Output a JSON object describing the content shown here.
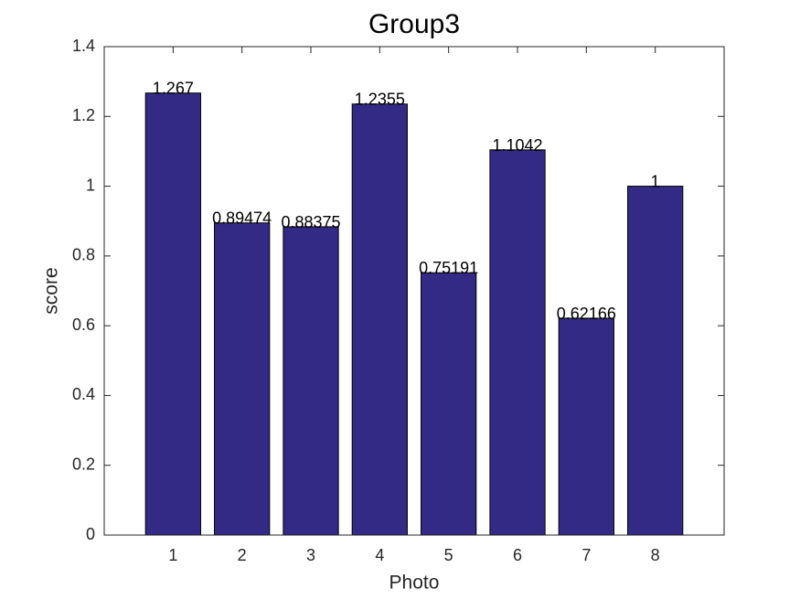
{
  "chart_data": {
    "type": "bar",
    "title": "Group3",
    "x_label": "Photo",
    "y_label": "score",
    "x": [
      1,
      2,
      3,
      4,
      5,
      6,
      7,
      8
    ],
    "values": [
      1.267,
      0.89474,
      0.88375,
      1.2355,
      0.75191,
      1.1042,
      0.62166,
      1
    ],
    "color": "#332a86",
    "xlim": [
      0,
      9
    ],
    "xticks": [
      1,
      2,
      3,
      4,
      5,
      6,
      7,
      8
    ],
    "ylim": [
      0,
      1.4
    ],
    "yticks": [
      0,
      0.2,
      0.4,
      0.6,
      0.8,
      1,
      1.2,
      1.4
    ],
    "grid": false
  }
}
